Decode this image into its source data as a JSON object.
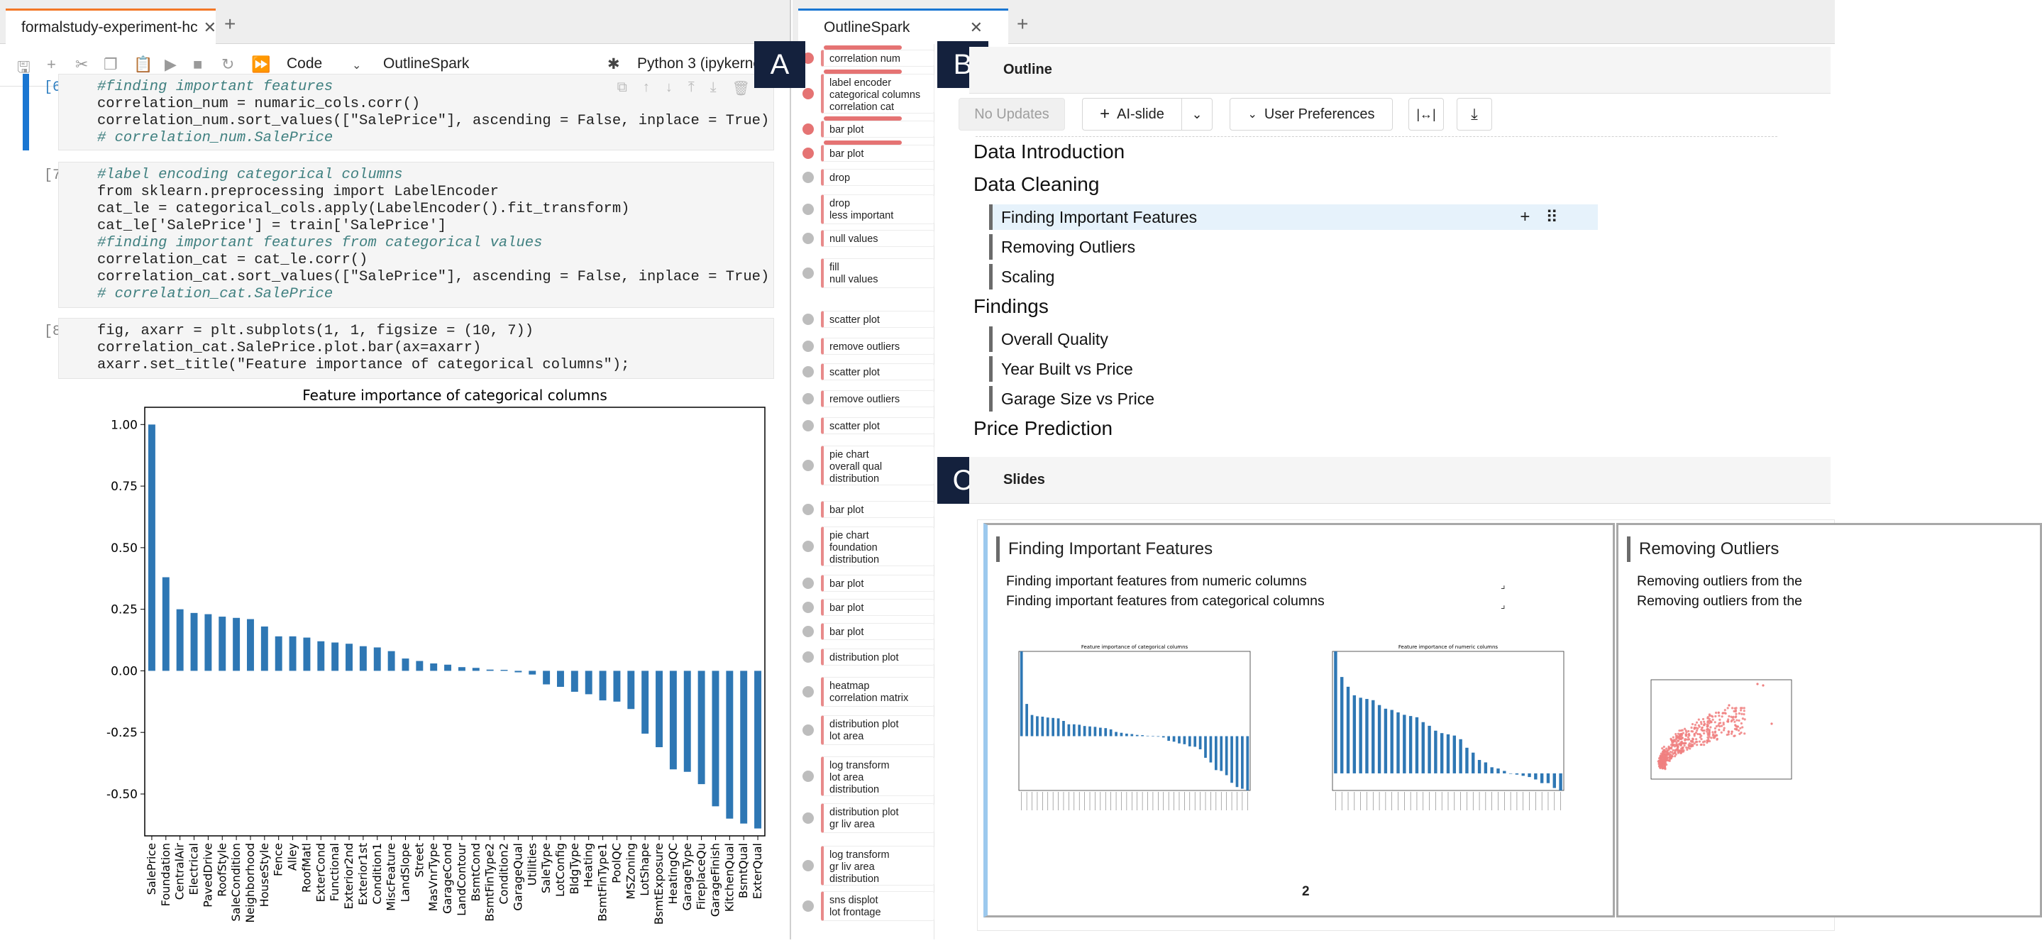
{
  "notebook": {
    "tab_title": "formalstudy-experiment-hc",
    "toolbar": {
      "cell_type": "Code",
      "extension": "OutlineSpark",
      "kernel": "Python 3 (ipykerne"
    },
    "cells": [
      {
        "prompt": "[6]:",
        "lines": [
          "#finding important features",
          "correlation_num = numaric_cols.corr()",
          "correlation_num.sort_values([\"SalePrice\"], ascending = False, inplace = True)",
          "# correlation_num.SalePrice"
        ]
      },
      {
        "prompt": "[7]:",
        "lines": [
          "#label encoding categorical columns",
          "from sklearn.preprocessing import LabelEncoder",
          "cat_le = categorical_cols.apply(LabelEncoder().fit_transform)",
          "cat_le['SalePrice'] = train['SalePrice']",
          "#finding important features from categorical values",
          "correlation_cat = cat_le.corr()",
          "correlation_cat.sort_values([\"SalePrice\"], ascending = False, inplace = True)",
          "# correlation_cat.SalePrice"
        ]
      },
      {
        "prompt": "[8]:",
        "lines": [
          "fig, axarr = plt.subplots(1, 1, figsize = (10, 7))",
          "correlation_cat.SalePrice.plot.bar(ax=axarr)",
          "axarr.set_title(\"Feature importance of categorical columns\");"
        ]
      }
    ]
  },
  "chart_data": {
    "type": "bar",
    "title": "Feature importance of categorical columns",
    "xlabel": "",
    "ylabel": "",
    "ylim": [
      -0.67,
      1.07
    ],
    "yticks": [
      "1.00",
      "0.75",
      "0.50",
      "0.25",
      "0.00",
      "-0.25",
      "-0.50"
    ],
    "ytick_values": [
      1.0,
      0.75,
      0.5,
      0.25,
      0.0,
      -0.25,
      -0.5
    ],
    "color": "#2e77b4",
    "categories": [
      "SalePrice",
      "Foundation",
      "CentralAir",
      "Electrical",
      "PavedDrive",
      "RoofStyle",
      "SaleCondition",
      "Neighborhood",
      "HouseStyle",
      "Fence",
      "Alley",
      "RoofMatl",
      "ExterCond",
      "Functional",
      "Exterior2nd",
      "Exterior1st",
      "Condition1",
      "MiscFeature",
      "LandSlope",
      "Street",
      "MasVnrType",
      "GarageCond",
      "LandContour",
      "BsmtCond",
      "BsmtFinType2",
      "Condition2",
      "GarageQual",
      "Utilities",
      "SaleType",
      "LotConfig",
      "BldgType",
      "Heating",
      "BsmtFinType1",
      "PoolQC",
      "MSZoning",
      "LotShape",
      "BsmtExposure",
      "HeatingQC",
      "GarageType",
      "FireplaceQu",
      "GarageFinish",
      "KitchenQual",
      "BsmtQual",
      "ExterQual"
    ],
    "values": [
      1.0,
      0.38,
      0.25,
      0.235,
      0.23,
      0.22,
      0.215,
      0.21,
      0.18,
      0.14,
      0.14,
      0.135,
      0.12,
      0.115,
      0.11,
      0.1,
      0.095,
      0.08,
      0.05,
      0.04,
      0.03,
      0.025,
      0.015,
      0.012,
      0.005,
      0.004,
      -0.006,
      -0.015,
      -0.055,
      -0.065,
      -0.085,
      -0.095,
      -0.12,
      -0.125,
      -0.155,
      -0.255,
      -0.31,
      -0.4,
      -0.41,
      -0.46,
      -0.55,
      -0.6,
      -0.62,
      -0.64
    ]
  },
  "outlinespark": {
    "tab_title": "OutlineSpark",
    "labels": {
      "a": "A",
      "b": "B",
      "c": "C"
    },
    "cell_list": [
      {
        "text": "correlation num",
        "dot": "red",
        "redbar": true
      },
      {
        "text": "label encoder\ncategorical columns\ncorrelation cat",
        "dot": "red",
        "redbar": true
      },
      {
        "text": "bar plot",
        "dot": "red",
        "redbar": true
      },
      {
        "text": "bar plot",
        "dot": "red",
        "redbar": true
      },
      {
        "text": "drop",
        "dot": "grey"
      },
      {
        "text": "drop\nless important",
        "dot": "grey"
      },
      {
        "text": "null values",
        "dot": "grey"
      },
      {
        "text": "fill\nnull values",
        "dot": "grey"
      },
      {
        "text": "scatter plot",
        "dot": "grey"
      },
      {
        "text": "remove outliers",
        "dot": "grey"
      },
      {
        "text": "scatter plot",
        "dot": "grey"
      },
      {
        "text": "remove outliers",
        "dot": "grey"
      },
      {
        "text": "scatter plot",
        "dot": "grey"
      },
      {
        "text": "pie chart\noverall qual\ndistribution",
        "dot": "grey"
      },
      {
        "text": "bar plot",
        "dot": "grey"
      },
      {
        "text": "pie chart\nfoundation\ndistribution",
        "dot": "grey"
      },
      {
        "text": "bar plot",
        "dot": "grey"
      },
      {
        "text": "bar plot",
        "dot": "grey"
      },
      {
        "text": "bar plot",
        "dot": "grey"
      },
      {
        "text": "distribution plot",
        "dot": "grey"
      },
      {
        "text": "heatmap\ncorrelation matrix",
        "dot": "grey"
      },
      {
        "text": "distribution plot\nlot area",
        "dot": "grey"
      },
      {
        "text": "log transform\nlot area\ndistribution",
        "dot": "grey"
      },
      {
        "text": "distribution plot\ngr liv area",
        "dot": "grey"
      },
      {
        "text": "log transform\ngr liv area\ndistribution",
        "dot": "grey"
      },
      {
        "text": "sns displot\nlot frontage",
        "dot": "grey"
      }
    ],
    "outline": {
      "header": "Outline",
      "no_updates": "No Updates",
      "ai_slide": "AI-slide",
      "user_preferences": "User Preferences",
      "sections": [
        {
          "title": "Data Introduction",
          "items": []
        },
        {
          "title": "Data Cleaning",
          "items": [
            "Finding Important Features",
            "Removing Outliers",
            "Scaling"
          ]
        },
        {
          "title": "Findings",
          "items": [
            "Overall Quality",
            "Year Built vs Price",
            "Garage Size vs Price"
          ]
        },
        {
          "title": "Price Prediction",
          "items": []
        }
      ]
    },
    "slides": {
      "header": "Slides",
      "list": [
        {
          "title": "Finding Important Features",
          "lines": [
            "Finding important features from numeric columns",
            "Finding important features from categorical columns"
          ],
          "page": "2",
          "thumb_left_title": "Feature importance of categorical columns",
          "thumb_right_title": "Feature importance of numeric columns"
        },
        {
          "title": "Removing Outliers",
          "lines": [
            "Removing outliers from the",
            "Removing outliers from the"
          ]
        }
      ]
    }
  }
}
